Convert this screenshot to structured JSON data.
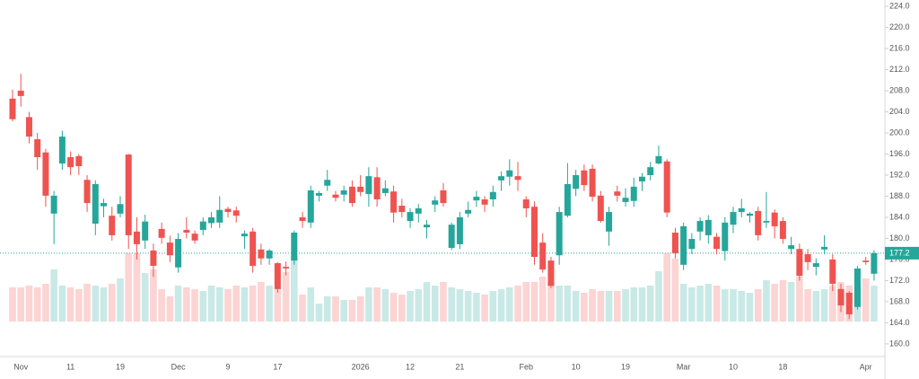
{
  "chart_data": {
    "type": "candlestick",
    "categories": [
      null,
      "Nov",
      null,
      null,
      null,
      null,
      null,
      "11",
      null,
      null,
      null,
      null,
      null,
      "19",
      null,
      null,
      null,
      null,
      null,
      null,
      "Dec",
      null,
      null,
      null,
      null,
      null,
      "9",
      null,
      null,
      null,
      null,
      null,
      "17",
      null,
      null,
      null,
      null,
      null,
      null,
      null,
      null,
      null,
      "2026",
      null,
      null,
      null,
      null,
      null,
      "12",
      null,
      null,
      null,
      null,
      null,
      "21",
      null,
      null,
      null,
      null,
      null,
      null,
      null,
      "Feb",
      null,
      null,
      null,
      null,
      null,
      "10",
      null,
      null,
      null,
      null,
      null,
      "19",
      null,
      null,
      null,
      null,
      null,
      null,
      "Mar",
      null,
      null,
      null,
      null,
      null,
      "10",
      null,
      null,
      null,
      null,
      null,
      "18",
      null,
      null,
      null,
      null,
      null,
      null,
      null,
      null,
      null,
      "Apr",
      null
    ],
    "open": [
      206.5,
      208,
      203,
      198.8,
      196.3,
      184.7,
      194.2,
      195.4,
      195.6,
      191.1,
      182.8,
      186.1,
      184.3,
      184.7,
      195.9,
      181.3,
      179.6,
      177.7,
      181.8,
      179.2,
      174.5,
      181.6,
      180.9,
      181.6,
      182.9,
      183,
      185.6,
      185.3,
      180.4,
      181.3,
      177.9,
      176.2,
      175.3,
      174.6,
      175.8,
      184,
      183,
      188.1,
      190,
      188.3,
      188.3,
      189.8,
      189.8,
      188.4,
      191.6,
      188.6,
      188.9,
      186.2,
      183.3,
      184.7,
      182.1,
      186.4,
      189.1,
      178.2,
      178.9,
      184.7,
      187.2,
      187.4,
      187.4,
      191,
      191.7,
      191.8,
      187.4,
      186,
      179.2,
      175.8,
      176.8,
      184.3,
      189.4,
      192.9,
      193.2,
      188.1,
      181.3,
      188.9,
      186.9,
      187.1,
      190.8,
      192,
      194.2,
      194.6,
      181.1,
      175,
      178,
      181.3,
      180.6,
      180.3,
      177.6,
      182.6,
      185,
      184.3,
      185.2,
      183,
      184.9,
      183.3,
      178,
      178,
      177,
      174.6,
      177.9,
      176,
      170.4,
      169.7,
      167,
      175.8,
      173.3
    ],
    "high": [
      208.2,
      211.2,
      204,
      200,
      197,
      189,
      200.4,
      196.5,
      196,
      192,
      191,
      187.5,
      186,
      188,
      196,
      184,
      184.5,
      179,
      183,
      180.5,
      181,
      184,
      181.5,
      184,
      185,
      188,
      186,
      186,
      181.5,
      182,
      179,
      178,
      175.5,
      175.6,
      181.5,
      185,
      190,
      189,
      193,
      189,
      190,
      191,
      192,
      193.5,
      193.5,
      191,
      190,
      187.5,
      185.7,
      186.5,
      183.5,
      188,
      190.5,
      183,
      185,
      187,
      189,
      188,
      190,
      192.7,
      195,
      194.5,
      188,
      187,
      181,
      176.5,
      186,
      194.3,
      193,
      194,
      194,
      189,
      186,
      190,
      189.5,
      191.5,
      192.4,
      194.5,
      197.6,
      195,
      182,
      183,
      181,
      184,
      184.4,
      181,
      184,
      186,
      187.5,
      185,
      186,
      188.8,
      185.5,
      184,
      180.3,
      179,
      178,
      176.2,
      180.6,
      177,
      171.4,
      170,
      174.8,
      176.5,
      177.8
    ],
    "low": [
      202.2,
      205,
      198,
      193,
      186,
      178.9,
      193,
      192,
      192,
      185,
      180.6,
      184,
      179.6,
      184,
      178,
      176,
      178,
      172.7,
      179,
      175.5,
      173.5,
      180,
      179,
      180.6,
      182,
      182,
      184,
      183,
      178,
      173.5,
      175,
      175,
      169.7,
      173,
      175,
      182,
      182,
      187,
      189,
      187,
      187,
      186,
      188,
      186,
      186,
      188,
      183,
      184,
      182,
      183,
      180,
      185,
      186,
      177.8,
      178,
      184,
      186,
      185,
      186,
      189,
      190,
      189,
      184,
      175,
      173.5,
      170.6,
      175,
      184,
      188,
      189,
      187,
      183,
      178.6,
      187,
      186,
      186,
      189,
      191,
      194,
      184,
      176.2,
      174,
      177,
      179.6,
      179,
      177,
      175.8,
      181,
      184,
      183,
      179.6,
      182,
      180,
      179,
      177,
      172,
      174,
      173,
      177,
      170,
      166,
      164.7,
      166.5,
      175,
      172
    ],
    "close": [
      202.6,
      207,
      199.3,
      195.4,
      188.1,
      188.1,
      199.3,
      193.5,
      193.7,
      186.7,
      190.3,
      186.7,
      180.6,
      186.5,
      180.6,
      178.9,
      183.2,
      174.8,
      180.1,
      176.8,
      179.9,
      181.1,
      179.6,
      183.2,
      184,
      185.4,
      185,
      184.3,
      180.9,
      174.8,
      176.2,
      177.7,
      170.4,
      174.3,
      181.1,
      183.3,
      189.1,
      188.6,
      191.1,
      187.7,
      189.1,
      186.7,
      188.8,
      191.8,
      187.4,
      189.5,
      184.9,
      185,
      185,
      185.7,
      182.6,
      187.2,
      186.7,
      182.6,
      184,
      185.4,
      187.9,
      186.4,
      188.8,
      191.8,
      192.9,
      191.1,
      185.7,
      176.5,
      174.1,
      171,
      185,
      190.3,
      192,
      190.1,
      187.9,
      183.3,
      185,
      188.1,
      187.7,
      189.8,
      191.7,
      193.5,
      195.6,
      184.9,
      177.2,
      182.3,
      179.9,
      183.3,
      183.5,
      178,
      183,
      185,
      185.7,
      184.7,
      180.6,
      183.3,
      182.3,
      179.9,
      178.7,
      172.9,
      175.5,
      175.3,
      178.4,
      171.4,
      167.3,
      165.6,
      174.3,
      175.5,
      177.2
    ],
    "volume": [
      38,
      38,
      40,
      38,
      42,
      58,
      40,
      38,
      36,
      42,
      40,
      38,
      42,
      48,
      76,
      76,
      54,
      58,
      36,
      28,
      40,
      38,
      36,
      34,
      40,
      38,
      36,
      40,
      38,
      40,
      44,
      40,
      38,
      55,
      73,
      30,
      38,
      20,
      28,
      28,
      24,
      24,
      28,
      38,
      38,
      36,
      32,
      30,
      34,
      36,
      44,
      40,
      44,
      38,
      36,
      34,
      32,
      30,
      34,
      36,
      38,
      40,
      44,
      44,
      50,
      44,
      40,
      40,
      34,
      32,
      36,
      34,
      34,
      34,
      36,
      38,
      38,
      40,
      56,
      76,
      70,
      42,
      38,
      40,
      42,
      40,
      36,
      36,
      34,
      32,
      36,
      46,
      42,
      46,
      44,
      50,
      36,
      34,
      36,
      40,
      44,
      40,
      40,
      48,
      40
    ],
    "up_color": "#26a69a",
    "down_color": "#ef5350",
    "last_price": 177.2,
    "ylim": [
      157.6,
      225.2
    ],
    "yticks": [
      {
        "value": 160,
        "label": "160.0"
      },
      {
        "value": 164,
        "label": "164.0"
      },
      {
        "value": 168,
        "label": "168.0"
      },
      {
        "value": 172,
        "label": "172.0"
      },
      {
        "value": 176,
        "label": "176.0"
      },
      {
        "value": 180,
        "label": "180.0"
      },
      {
        "value": 184,
        "label": "184.0"
      },
      {
        "value": 188,
        "label": "188.0"
      },
      {
        "value": 192,
        "label": "192.0"
      },
      {
        "value": 196,
        "label": "196.0"
      },
      {
        "value": 200,
        "label": "200.0"
      },
      {
        "value": 204,
        "label": "204.0"
      },
      {
        "value": 208,
        "label": "208.0"
      },
      {
        "value": 212,
        "label": "212.0"
      },
      {
        "value": 216,
        "label": "216.0"
      },
      {
        "value": 220,
        "label": "220.0"
      },
      {
        "value": 224,
        "label": "224.0"
      }
    ],
    "grid": false
  }
}
